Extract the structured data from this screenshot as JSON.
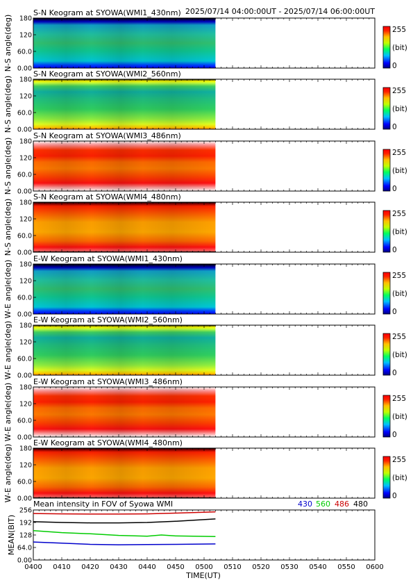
{
  "header": {
    "time_range": "2025/07/14 04:00:00UT - 2025/07/14 06:00:00UT"
  },
  "colorbar": {
    "max_label": "255",
    "unit_label": "(bit)",
    "min_label": "0"
  },
  "chart_data": [
    {
      "type": "heatmap",
      "title": "S-N Keogram at SYOWA(WMI1_430nm)",
      "ylabel": "N-S angle(deg)",
      "yticks": [
        "0.00",
        "60.0",
        "120",
        "180"
      ],
      "ylim": [
        0,
        180
      ],
      "data_end": "05:04",
      "profile": "blue"
    },
    {
      "type": "heatmap",
      "title": "S-N Keogram at SYOWA(WMI2_560nm)",
      "ylabel": "N-S angle(deg)",
      "yticks": [
        "0.00",
        "60.0",
        "120",
        "180"
      ],
      "ylim": [
        0,
        180
      ],
      "data_end": "05:04",
      "profile": "green"
    },
    {
      "type": "heatmap",
      "title": "S-N Keogram at SYOWA(WMI3_486nm)",
      "ylabel": "N-S angle(deg)",
      "yticks": [
        "0.00",
        "60.0",
        "120",
        "180"
      ],
      "ylim": [
        0,
        180
      ],
      "data_end": "05:04",
      "profile": "red"
    },
    {
      "type": "heatmap",
      "title": "S-N Keogram at SYOWA(WMI4_480nm)",
      "ylabel": "N-S angle(deg)",
      "yticks": [
        "0.00",
        "60.0",
        "120",
        "180"
      ],
      "ylim": [
        0,
        180
      ],
      "data_end": "05:04",
      "profile": "orange"
    },
    {
      "type": "heatmap",
      "title": "E-W Keogram at SYOWA(WMI1_430nm)",
      "ylabel": "W-E angle(deg)",
      "yticks": [
        "0.00",
        "60.0",
        "120",
        "180"
      ],
      "ylim": [
        0,
        180
      ],
      "data_end": "05:04",
      "profile": "blue"
    },
    {
      "type": "heatmap",
      "title": "E-W Keogram at SYOWA(WMI2_560nm)",
      "ylabel": "W-E angle(deg)",
      "yticks": [
        "0.00",
        "60.0",
        "120",
        "180"
      ],
      "ylim": [
        0,
        180
      ],
      "data_end": "05:04",
      "profile": "green"
    },
    {
      "type": "heatmap",
      "title": "E-W Keogram at SYOWA(WMI3_486nm)",
      "ylabel": "W-E angle(deg)",
      "yticks": [
        "0.00",
        "60.0",
        "120",
        "180"
      ],
      "ylim": [
        0,
        180
      ],
      "data_end": "05:04",
      "profile": "red"
    },
    {
      "type": "heatmap",
      "title": "E-W Keogram at SYOWA(WMI4_480nm)",
      "ylabel": "W-E angle(deg)",
      "yticks": [
        "0.00",
        "60.0",
        "120",
        "180"
      ],
      "ylim": [
        0,
        180
      ],
      "data_end": "05:04",
      "profile": "orange"
    },
    {
      "type": "line",
      "title": "Mean intensity in FOV of Syowa WMI",
      "ylabel": "MEAN(BIT)",
      "yticks": [
        "0.00",
        "64.0",
        "128",
        "192",
        "256"
      ],
      "ylim": [
        0,
        256
      ],
      "xlabel": "TIME(UT)",
      "xticks": [
        "0400",
        "0410",
        "0420",
        "0430",
        "0440",
        "0450",
        "0500",
        "0510",
        "0520",
        "0530",
        "0540",
        "0550",
        "0600"
      ],
      "xlim_minutes": [
        0,
        120
      ],
      "legend": [
        "430",
        "560",
        "486",
        "480"
      ],
      "series": [
        {
          "name": "430",
          "color": "#0000cc",
          "x": [
            0,
            10,
            20,
            30,
            40,
            50,
            64
          ],
          "y": [
            92,
            86,
            80,
            78,
            79,
            80,
            82
          ]
        },
        {
          "name": "560",
          "color": "#00cc00",
          "x": [
            0,
            10,
            20,
            30,
            40,
            45,
            50,
            64
          ],
          "y": [
            150,
            140,
            134,
            126,
            122,
            128,
            123,
            120
          ]
        },
        {
          "name": "486",
          "color": "#cc0000",
          "x": [
            0,
            10,
            20,
            30,
            40,
            50,
            64
          ],
          "y": [
            238,
            236,
            235,
            235,
            236,
            240,
            246
          ]
        },
        {
          "name": "480",
          "color": "#000000",
          "x": [
            0,
            10,
            20,
            30,
            40,
            50,
            64
          ],
          "y": [
            196,
            192,
            190,
            190,
            192,
            198,
            210
          ]
        }
      ]
    }
  ]
}
